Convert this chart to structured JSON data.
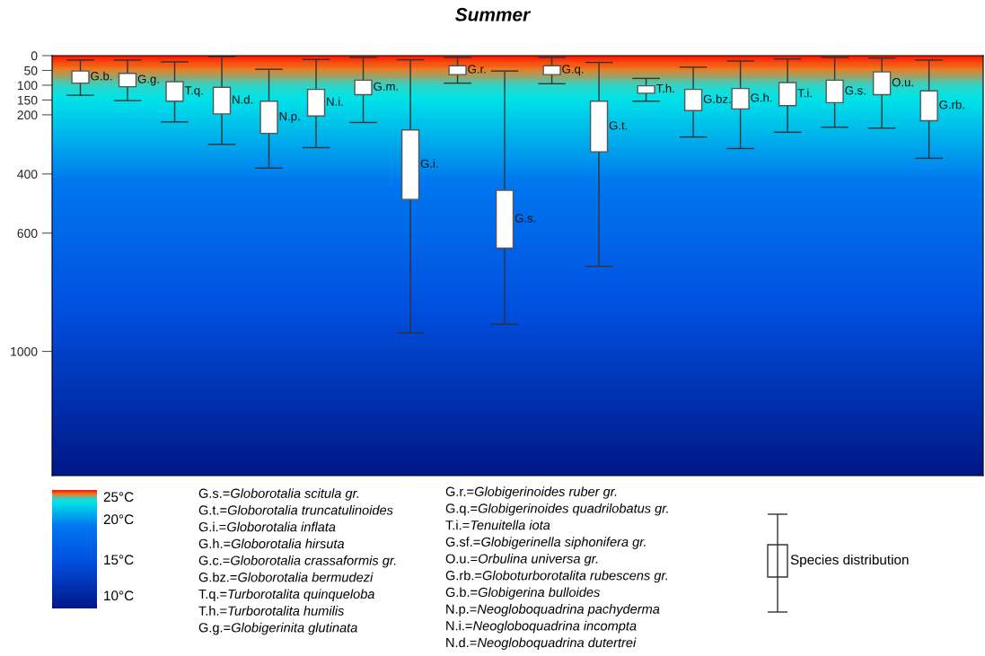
{
  "chart_data": {
    "type": "bar",
    "title": "Summer",
    "categories": [
      "G.b.",
      "G.g.",
      "T.q.",
      "N.d.",
      "N.p.",
      "N.i.",
      "G.m.",
      "G.i.",
      "G.r.",
      "G.s.",
      "G.q.",
      "G.t.",
      "T.h.",
      "G.bz.",
      "G.h.",
      "T.i.",
      "G.s.",
      "O.u.",
      "G.rb."
    ],
    "base": [
      52,
      60,
      88,
      107,
      154,
      114,
      83,
      251,
      34,
      455,
      34,
      154,
      102,
      114,
      111,
      91,
      83,
      55,
      119
    ],
    "values": [
      41,
      45,
      66,
      90,
      109,
      90,
      49,
      235,
      30,
      196,
      30,
      171,
      25,
      72,
      69,
      78,
      76,
      77,
      101
    ],
    "errors": [
      [
        15,
        134
      ],
      [
        15,
        152
      ],
      [
        21,
        224
      ],
      [
        3,
        300
      ],
      [
        46,
        380
      ],
      [
        13,
        311
      ],
      [
        6,
        226
      ],
      [
        14,
        937
      ],
      [
        6,
        93
      ],
      [
        52,
        908
      ],
      [
        6,
        95
      ],
      [
        23,
        712
      ],
      [
        77,
        154
      ],
      [
        39,
        275
      ],
      [
        18,
        314
      ],
      [
        11,
        259
      ],
      [
        6,
        242
      ],
      [
        8,
        245
      ],
      [
        15,
        347
      ]
    ],
    "color": "#ffffff",
    "ylim": [
      1420,
      0
    ],
    "yticks": [
      0,
      50,
      100,
      150,
      200,
      400,
      600,
      1000
    ],
    "tick_labels": "y",
    "grid": false,
    "legend": false,
    "annotations": [
      "25°C",
      "20°C",
      "15°C",
      "10°C",
      "G.s.=Globorotalia scitula gr.",
      "G.t.=Globorotalia truncatulinoides",
      "G.i.=Globorotalia inflata",
      "G.h.=Globorotalia hirsuta",
      "G.c.=Globorotalia crassaformis gr.",
      "G.bz.=Globorotalia bermudezi",
      "T.q.=Turborotalita quinqueloba",
      "T.h.=Turborotalita humilis",
      "G.g.=Globigerinita glutinata",
      "G.r.=Globigerinoides ruber gr.",
      "G.q.=Globigerinoides quadrilobatus gr.",
      "T.i.=Tenuitella iota",
      "G.sf.=Globigerinella siphonifera gr.",
      "O.u.=Orbulina universa gr.",
      "G.rb.=Globoturborotalita rubescens gr.",
      "G.b.=Globigerina bulloides",
      "N.p.=Neogloboquadrina pachyderma",
      "N.i.=Neogloboquadrina incompta",
      "N.d.=Neogloboquadrina dutertrei",
      "Species distribution"
    ]
  }
}
